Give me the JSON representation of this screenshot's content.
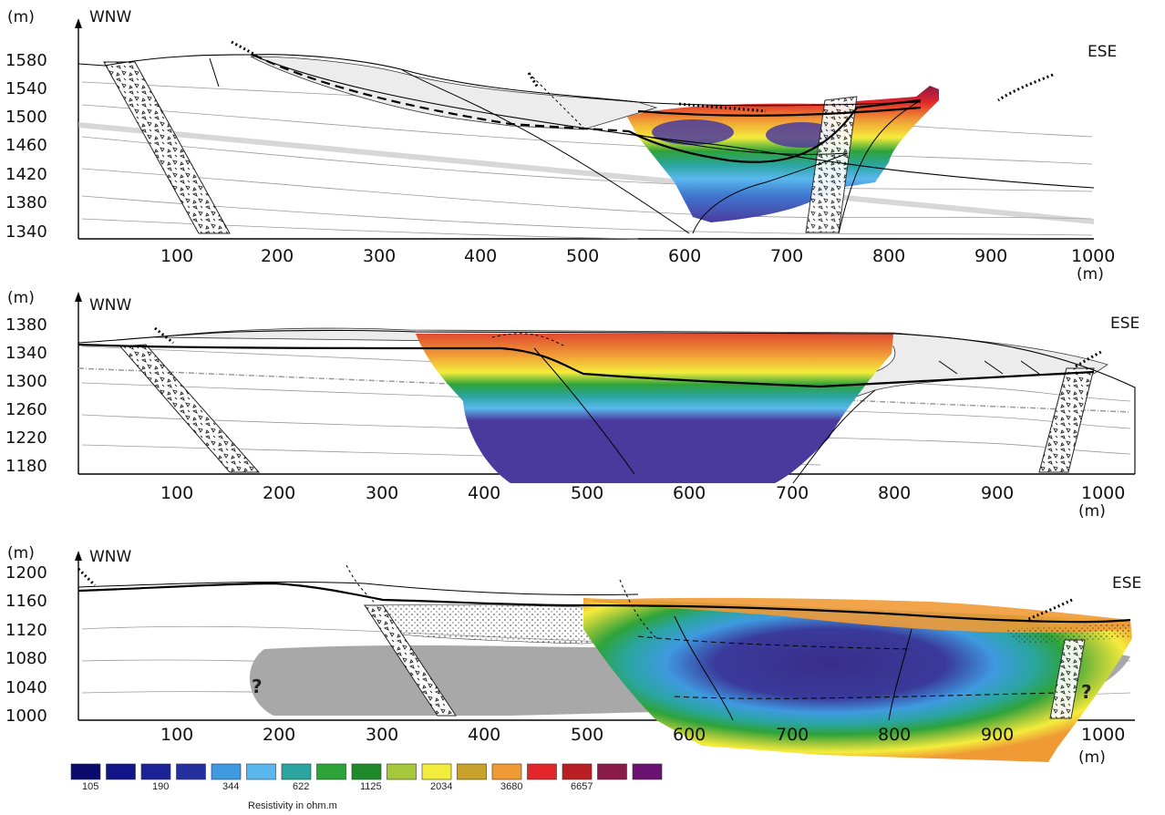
{
  "colors": {
    "scale": [
      "#0a0a6e",
      "#12148a",
      "#1a2296",
      "#23309e",
      "#3f9ae0",
      "#5ab8ee",
      "#2aa5a0",
      "#2ea33a",
      "#1f8a2c",
      "#a5c83a",
      "#f4ec3c",
      "#c8a22a",
      "#f09a36",
      "#e2262a",
      "#b81e22",
      "#8a1a48",
      "#6a1272"
    ],
    "purple_core": "#4b3a9e",
    "gray_fill": "#a8a8a8",
    "light_fill": "#ececec"
  },
  "sections": [
    {
      "unit": "(m)",
      "west": "WNW",
      "east": "ESE",
      "y_ticks": [
        "1580",
        "1540",
        "1500",
        "1460",
        "1420",
        "1380",
        "1340"
      ],
      "x_ticks": [
        "100",
        "200",
        "300",
        "400",
        "500",
        "600",
        "700",
        "800",
        "900",
        "1000"
      ],
      "x_unit": "(m)"
    },
    {
      "unit": "(m)",
      "west": "WNW",
      "east": "ESE",
      "y_ticks": [
        "1380",
        "1340",
        "1300",
        "1260",
        "1220",
        "1180"
      ],
      "x_ticks": [
        "100",
        "200",
        "300",
        "400",
        "500",
        "600",
        "700",
        "800",
        "900",
        "1000"
      ],
      "x_unit": "(m)"
    },
    {
      "unit": "(m)",
      "west": "WNW",
      "east": "ESE",
      "y_ticks": [
        "1200",
        "1160",
        "1120",
        "1080",
        "1040",
        "1000"
      ],
      "x_ticks": [
        "100",
        "200",
        "300",
        "400",
        "500",
        "600",
        "700",
        "800",
        "900",
        "1000"
      ],
      "x_unit": "(m)",
      "question_marks": [
        "?",
        "?"
      ]
    }
  ],
  "legend": {
    "labels": [
      "105",
      "190",
      "344",
      "622",
      "1125",
      "2034",
      "3680",
      "6657"
    ],
    "caption": "Resistivity in ohm.m"
  }
}
